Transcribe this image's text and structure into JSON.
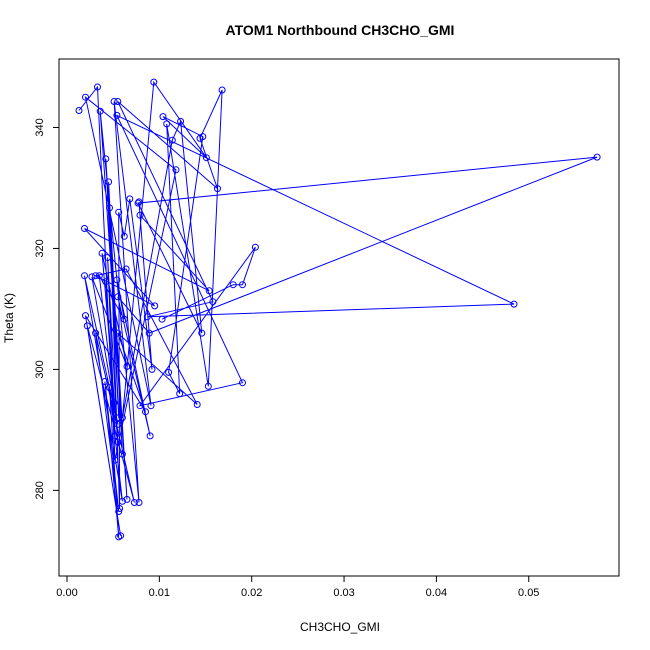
{
  "chart_data": {
    "type": "line",
    "title": "ATOM1 Northbound CH3CHO_GMI",
    "xlabel": "CH3CHO_GMI",
    "ylabel": "Theta (K)",
    "xlim": [
      0.0,
      0.0575
    ],
    "ylim": [
      267,
      350
    ],
    "xticks": [
      0.0,
      0.01,
      0.02,
      0.03,
      0.04,
      0.05
    ],
    "xtick_labels": [
      "0.00",
      "0.01",
      "0.02",
      "0.03",
      "0.04",
      "0.05"
    ],
    "yticks": [
      280,
      300,
      320,
      340
    ],
    "ytick_labels": [
      "280",
      "300",
      "320",
      "340"
    ],
    "grid": false,
    "legend": "none",
    "colors": {
      "series": "#0000ff",
      "axis": "#000000",
      "background": "#ffffff"
    },
    "series": [
      {
        "marker": "open-circle",
        "points": [
          [
            0.0013,
            342.8
          ],
          [
            0.0033,
            346.7
          ],
          [
            0.0052,
            285.0
          ],
          [
            0.0118,
            333.0
          ],
          [
            0.002,
            345.0
          ],
          [
            0.0091,
            294.0
          ],
          [
            0.0051,
            344.3
          ],
          [
            0.0078,
            278.0
          ],
          [
            0.0036,
            342.7
          ],
          [
            0.0065,
            278.5
          ],
          [
            0.0042,
            334.8
          ],
          [
            0.0056,
            292.0
          ],
          [
            0.0045,
            331.0
          ],
          [
            0.006,
            286.0
          ],
          [
            0.0046,
            326.7
          ],
          [
            0.0057,
            277.0
          ],
          [
            0.0056,
            326.0
          ],
          [
            0.0062,
            322.0
          ],
          [
            0.0068,
            328.2
          ],
          [
            0.0092,
            300.0
          ],
          [
            0.0078,
            327.7
          ],
          [
            0.0079,
            325.5
          ],
          [
            0.0154,
            313.0
          ],
          [
            0.0019,
            323.3
          ],
          [
            0.0095,
            310.5
          ],
          [
            0.0031,
            315.5
          ],
          [
            0.0064,
            316.6
          ],
          [
            0.0141,
            294.2
          ],
          [
            0.0055,
            306.0
          ],
          [
            0.0085,
            293.0
          ],
          [
            0.002,
            308.9
          ],
          [
            0.0058,
            272.5
          ],
          [
            0.0022,
            307.2
          ],
          [
            0.0073,
            278.0
          ],
          [
            0.0031,
            306.0
          ],
          [
            0.0056,
            276.5
          ],
          [
            0.0041,
            298.0
          ],
          [
            0.0056,
            272.3
          ],
          [
            0.0046,
            297.0
          ],
          [
            0.006,
            278.2
          ],
          [
            0.0019,
            315.5
          ],
          [
            0.0055,
            290.9
          ],
          [
            0.0027,
            315.3
          ],
          [
            0.0065,
            300.5
          ],
          [
            0.0038,
            319.2
          ],
          [
            0.0055,
            288.0
          ],
          [
            0.0044,
            318.5
          ],
          [
            0.0052,
            289.0
          ],
          [
            0.0042,
            314.5
          ],
          [
            0.0051,
            294.5
          ],
          [
            0.0035,
            315.5
          ],
          [
            0.0062,
            308.3
          ],
          [
            0.0054,
            314.8
          ],
          [
            0.009,
            289.0
          ],
          [
            0.0055,
            312.0
          ],
          [
            0.0089,
            306.0
          ],
          [
            0.0574,
            335.1
          ],
          [
            0.0077,
            327.5
          ],
          [
            0.0146,
            306.0
          ],
          [
            0.0123,
            341.0
          ],
          [
            0.0114,
            337.9
          ],
          [
            0.006,
            292.0
          ],
          [
            0.0094,
            347.5
          ],
          [
            0.0151,
            335.0
          ],
          [
            0.0104,
            341.8
          ],
          [
            0.0147,
            338.5
          ],
          [
            0.011,
            299.5
          ],
          [
            0.0122,
            296.0
          ],
          [
            0.0108,
            340.6
          ],
          [
            0.0153,
            297.2
          ],
          [
            0.0168,
            346.2
          ],
          [
            0.0144,
            338.2
          ],
          [
            0.0163,
            329.9
          ],
          [
            0.0055,
            344.3
          ],
          [
            0.0158,
            311.2
          ],
          [
            0.0087,
            308.7
          ],
          [
            0.0484,
            310.8
          ],
          [
            0.0054,
            342.0
          ],
          [
            0.019,
            297.8
          ],
          [
            0.0079,
            294.0
          ],
          [
            0.0204,
            320.2
          ],
          [
            0.019,
            314.0
          ],
          [
            0.018,
            314.0
          ],
          [
            0.0103,
            308.3
          ]
        ]
      }
    ]
  }
}
